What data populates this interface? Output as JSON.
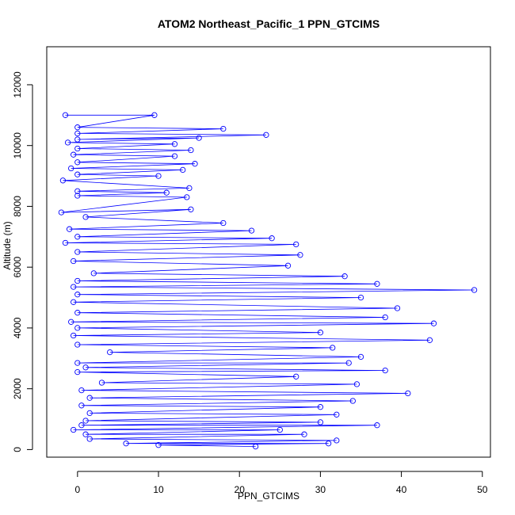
{
  "chart_data": {
    "type": "scatter",
    "title": "ATOM2 Northeast_Pacific_1 PPN_GTCIMS",
    "xlabel": "PPN_GTCIMS",
    "ylabel": "Altitude (m)",
    "xlim": [
      -3.8,
      51.0
    ],
    "ylim": [
      -250,
      13250
    ],
    "x_ticks": [
      0,
      10,
      20,
      30,
      40,
      50
    ],
    "y_ticks": [
      0,
      2000,
      4000,
      6000,
      8000,
      10000,
      12000
    ],
    "grid": false,
    "legend": "none",
    "marker": "open-circle",
    "connected_by_lines": true,
    "color": "#0000ff",
    "series": [
      {
        "values": [
          [
            -1.5,
            11000
          ],
          [
            9.5,
            11000
          ],
          [
            0,
            10600
          ],
          [
            18,
            10550
          ],
          [
            0,
            10400
          ],
          [
            23.3,
            10350
          ],
          [
            0,
            10200
          ],
          [
            15,
            10250
          ],
          [
            -1.2,
            10100
          ],
          [
            12,
            10050
          ],
          [
            0,
            9900
          ],
          [
            14,
            9850
          ],
          [
            -0.5,
            9700
          ],
          [
            12,
            9650
          ],
          [
            0,
            9450
          ],
          [
            14.5,
            9400
          ],
          [
            -0.8,
            9250
          ],
          [
            13,
            9200
          ],
          [
            0,
            9050
          ],
          [
            10,
            9000
          ],
          [
            -1.8,
            8850
          ],
          [
            13.8,
            8600
          ],
          [
            0,
            8500
          ],
          [
            11,
            8450
          ],
          [
            0,
            8350
          ],
          [
            13.5,
            8300
          ],
          [
            -2,
            7800
          ],
          [
            14,
            7900
          ],
          [
            1,
            7650
          ],
          [
            18,
            7450
          ],
          [
            -1,
            7250
          ],
          [
            21.5,
            7200
          ],
          [
            0,
            7000
          ],
          [
            24,
            6950
          ],
          [
            -1.5,
            6800
          ],
          [
            27,
            6750
          ],
          [
            0,
            6500
          ],
          [
            27.5,
            6400
          ],
          [
            -0.5,
            6200
          ],
          [
            26,
            6050
          ],
          [
            2,
            5800
          ],
          [
            33,
            5700
          ],
          [
            0,
            5550
          ],
          [
            37,
            5450
          ],
          [
            -0.5,
            5350
          ],
          [
            49,
            5250
          ],
          [
            0,
            5100
          ],
          [
            35,
            5000
          ],
          [
            -0.5,
            4850
          ],
          [
            39.5,
            4650
          ],
          [
            0,
            4500
          ],
          [
            38,
            4350
          ],
          [
            -0.8,
            4200
          ],
          [
            44,
            4150
          ],
          [
            0,
            4000
          ],
          [
            30,
            3850
          ],
          [
            -0.5,
            3750
          ],
          [
            43.5,
            3600
          ],
          [
            0,
            3450
          ],
          [
            31.5,
            3350
          ],
          [
            4,
            3200
          ],
          [
            35,
            3050
          ],
          [
            0,
            2850
          ],
          [
            33.5,
            2850
          ],
          [
            1,
            2700
          ],
          [
            38,
            2600
          ],
          [
            0,
            2550
          ],
          [
            27,
            2400
          ],
          [
            3,
            2200
          ],
          [
            34.5,
            2150
          ],
          [
            0.5,
            1950
          ],
          [
            40.8,
            1850
          ],
          [
            1.5,
            1700
          ],
          [
            34,
            1600
          ],
          [
            0.5,
            1450
          ],
          [
            30,
            1400
          ],
          [
            1.5,
            1200
          ],
          [
            32,
            1150
          ],
          [
            1,
            950
          ],
          [
            30,
            900
          ],
          [
            0.5,
            800
          ],
          [
            37,
            800
          ],
          [
            -0.5,
            650
          ],
          [
            25,
            650
          ],
          [
            1,
            500
          ],
          [
            28,
            500
          ],
          [
            1.5,
            350
          ],
          [
            32,
            300
          ],
          [
            6,
            200
          ],
          [
            31,
            200
          ],
          [
            10,
            150
          ],
          [
            22,
            100
          ]
        ]
      }
    ]
  }
}
